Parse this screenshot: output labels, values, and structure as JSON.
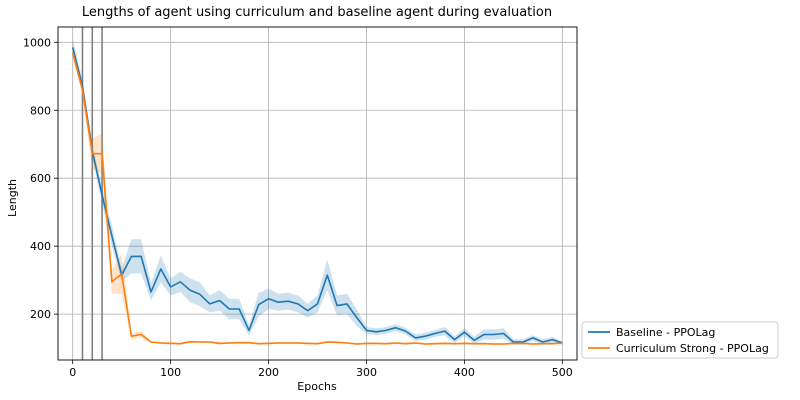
{
  "chart_data": {
    "type": "line",
    "title": "Lengths of agent using curriculum and baseline agent during evaluation",
    "xlabel": "Epochs",
    "ylabel": "Length",
    "xlim": [
      -15,
      515
    ],
    "ylim": [
      65,
      1045
    ],
    "xticks": [
      0,
      100,
      200,
      300,
      400,
      500
    ],
    "yticks": [
      200,
      400,
      600,
      800,
      1000
    ],
    "grid": true,
    "legend_position": "outside-bottom-right",
    "vertical_markers": [
      10,
      20,
      30
    ],
    "x": [
      0,
      10,
      20,
      30,
      40,
      50,
      60,
      70,
      80,
      90,
      100,
      110,
      120,
      130,
      140,
      150,
      160,
      170,
      180,
      190,
      200,
      210,
      220,
      230,
      240,
      250,
      260,
      270,
      280,
      290,
      300,
      310,
      320,
      330,
      340,
      350,
      360,
      370,
      380,
      390,
      400,
      410,
      420,
      430,
      440,
      450,
      460,
      470,
      480,
      490,
      500
    ],
    "series": [
      {
        "name": "Baseline - PPOLag",
        "color": "#1f77b4",
        "values": [
          985,
          870,
          680,
          550,
          430,
          315,
          370,
          370,
          265,
          333,
          280,
          295,
          270,
          258,
          230,
          240,
          215,
          215,
          152,
          228,
          245,
          235,
          238,
          230,
          210,
          230,
          315,
          225,
          230,
          190,
          152,
          148,
          152,
          160,
          150,
          130,
          135,
          143,
          150,
          125,
          147,
          123,
          140,
          140,
          143,
          118,
          118,
          130,
          118,
          125,
          115
        ],
        "band": [
          25,
          20,
          20,
          25,
          30,
          20,
          50,
          50,
          25,
          40,
          25,
          30,
          35,
          35,
          25,
          30,
          30,
          30,
          15,
          35,
          30,
          25,
          25,
          25,
          20,
          25,
          45,
          30,
          30,
          25,
          10,
          10,
          10,
          10,
          10,
          10,
          10,
          10,
          12,
          10,
          12,
          10,
          15,
          15,
          15,
          8,
          8,
          8,
          8,
          8,
          5
        ]
      },
      {
        "name": "Curriculum Strong - PPOLag",
        "color": "#ff7f0e",
        "values": [
          970,
          860,
          672,
          672,
          295,
          318,
          135,
          140,
          118,
          115,
          114,
          113,
          119,
          118,
          118,
          114,
          115,
          116,
          116,
          113,
          114,
          115,
          115,
          115,
          114,
          113,
          118,
          117,
          115,
          112,
          114,
          114,
          113,
          115,
          113,
          115,
          112,
          113,
          114,
          113,
          114,
          113,
          113,
          112,
          112,
          114,
          114,
          112,
          113,
          113,
          115
        ],
        "band": [
          15,
          15,
          45,
          60,
          35,
          60,
          8,
          10,
          3,
          3,
          3,
          3,
          3,
          3,
          3,
          3,
          3,
          3,
          3,
          3,
          3,
          3,
          3,
          3,
          3,
          3,
          3,
          3,
          3,
          3,
          3,
          3,
          3,
          3,
          3,
          3,
          3,
          3,
          3,
          3,
          3,
          3,
          3,
          3,
          3,
          3,
          3,
          3,
          3,
          3,
          3
        ]
      }
    ]
  }
}
